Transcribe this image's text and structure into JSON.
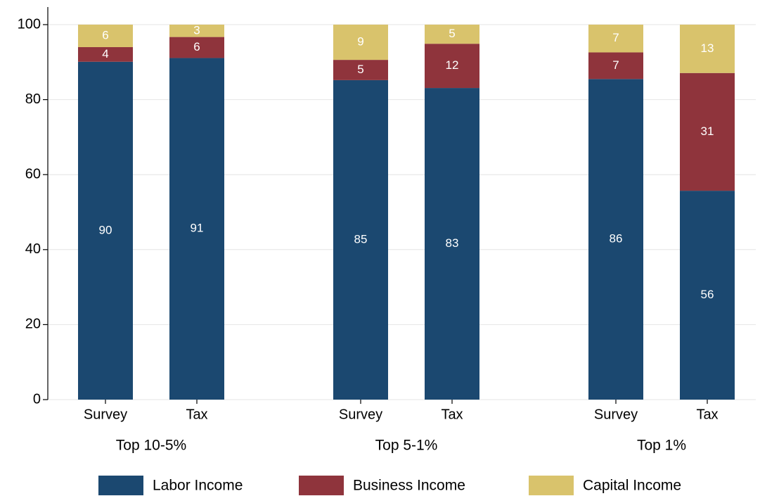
{
  "chart_data": {
    "type": "stacked_bar",
    "categories": [
      "Survey",
      "Tax",
      "Survey",
      "Tax",
      "Survey",
      "Tax"
    ],
    "groups": [
      "Top 10-5%",
      "Top 5-1%",
      "Top 1%"
    ],
    "series": [
      {
        "name": "Labor Income",
        "color": "#1b4870",
        "values": [
          90.1,
          91.1,
          85.2,
          83.1,
          85.5,
          55.7
        ],
        "value_labels": [
          "90",
          "91",
          "85",
          "83",
          "86",
          "56"
        ]
      },
      {
        "name": "Business Income",
        "color": "#8f343c",
        "values": [
          3.9,
          5.6,
          5.4,
          11.8,
          7.1,
          31.4
        ],
        "value_labels": [
          "4",
          "6",
          "5",
          "12",
          "7",
          "31"
        ]
      },
      {
        "name": "Capital Income",
        "color": "#d9c36c",
        "values": [
          6.0,
          3.3,
          9.4,
          5.1,
          7.4,
          12.9
        ],
        "value_labels": [
          "6",
          "3",
          "9",
          "5",
          "7",
          "13"
        ]
      }
    ],
    "ylim": [
      0,
      100
    ],
    "yticks": [
      0,
      20,
      40,
      60,
      80,
      100
    ],
    "grid": true
  }
}
